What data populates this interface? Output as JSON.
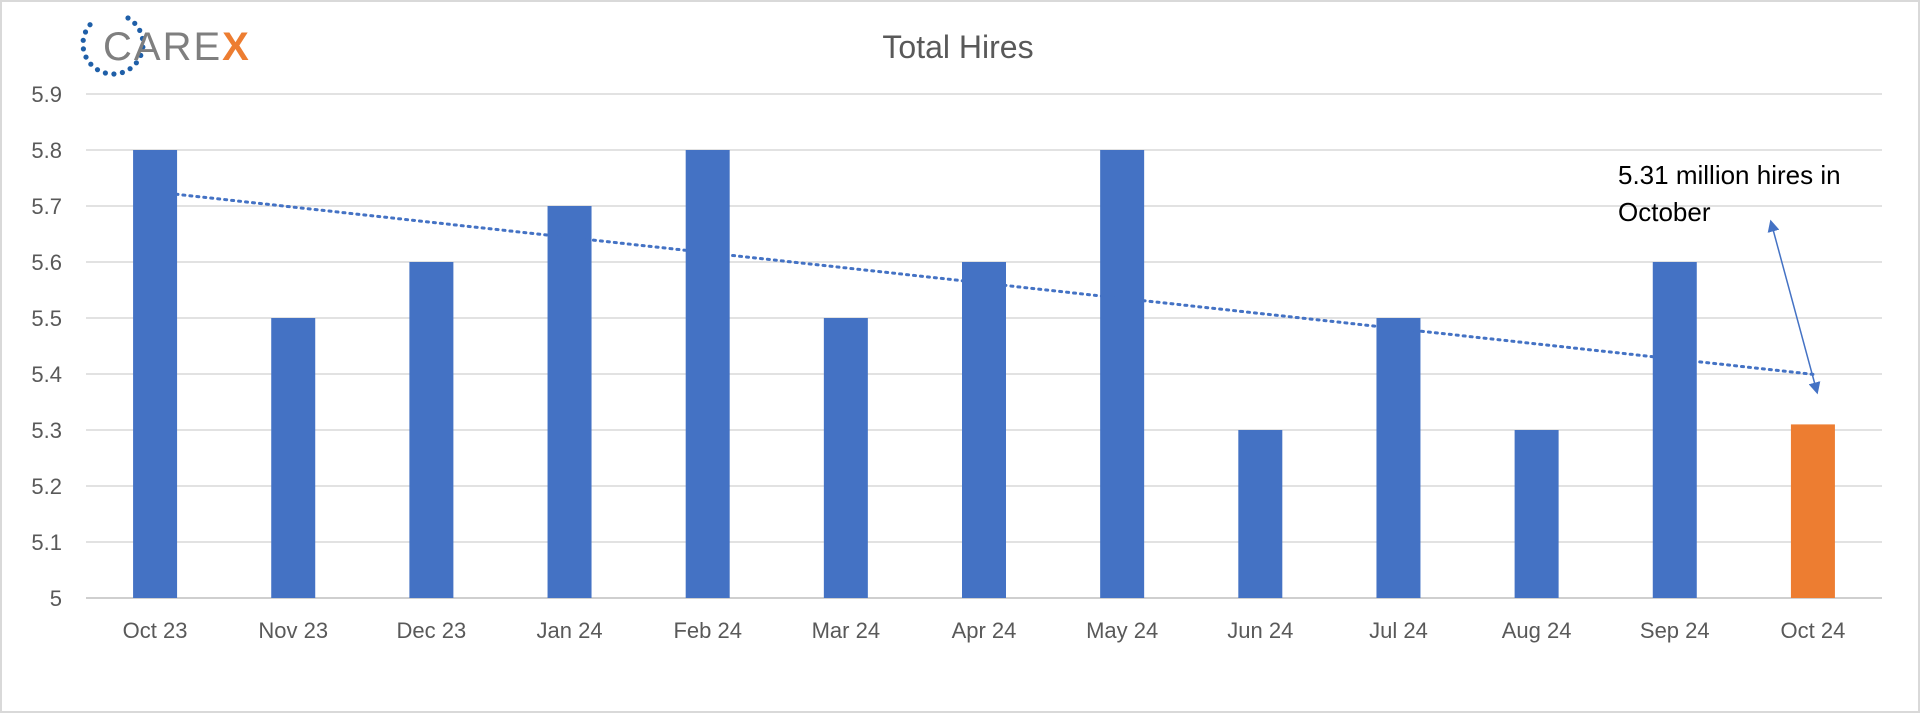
{
  "logo": {
    "text_main": "CARE",
    "text_accent": "X",
    "main_color": "#7f7f7f",
    "accent_color": "#ed7d31",
    "dots_color": "#1f5fa8"
  },
  "chart_data": {
    "type": "bar",
    "title": "Total Hires",
    "xlabel": "",
    "ylabel": "",
    "categories": [
      "Oct 23",
      "Nov 23",
      "Dec 23",
      "Jan 24",
      "Feb 24",
      "Mar 24",
      "Apr 24",
      "May 24",
      "Jun 24",
      "Jul 24",
      "Aug 24",
      "Sep 24",
      "Oct 24"
    ],
    "values": [
      5.8,
      5.5,
      5.6,
      5.7,
      5.8,
      5.5,
      5.6,
      5.8,
      5.3,
      5.5,
      5.3,
      5.6,
      5.31
    ],
    "ylim": [
      5,
      5.9
    ],
    "yticks": [
      "5",
      "5.1",
      "5.2",
      "5.3",
      "5.4",
      "5.5",
      "5.6",
      "5.7",
      "5.8",
      "5.9"
    ],
    "grid": true,
    "bar_color": "#4472c4",
    "highlight_color": "#ed7d31",
    "highlight_index": 12,
    "trendline": {
      "type": "linear",
      "style": "dotted",
      "color": "#4472c4"
    },
    "annotation": {
      "lines": [
        "5.31 million hires in",
        "October"
      ],
      "points_to": "Oct 24",
      "arrow_color": "#4472c4"
    }
  }
}
